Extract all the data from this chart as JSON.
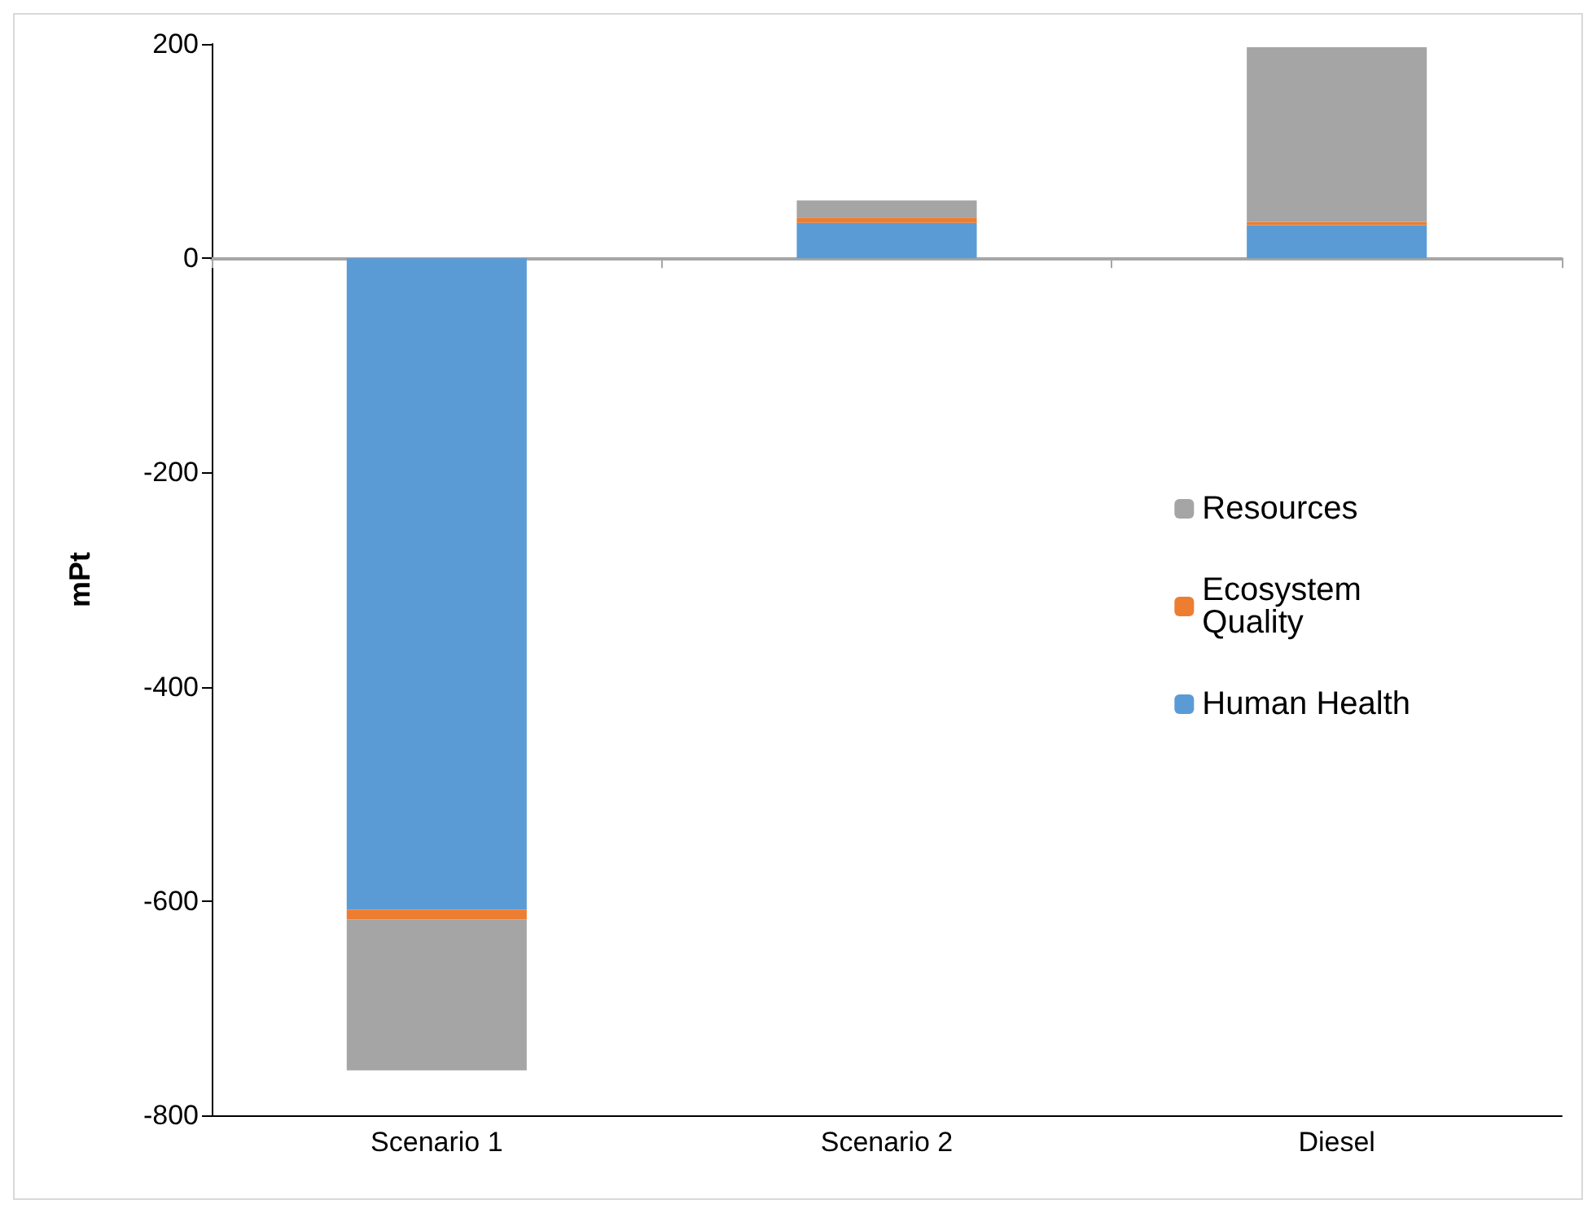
{
  "chart_data": {
    "type": "bar",
    "stacked": true,
    "ylabel": "mPt",
    "categories": [
      "Scenario 1",
      "Scenario 2",
      "Diesel"
    ],
    "series": [
      {
        "name": "Human Health",
        "color": "#5b9bd5",
        "values": [
          -608,
          33,
          31
        ]
      },
      {
        "name": "Ecosystem Quality",
        "color": "#ed7d31",
        "values": [
          -9,
          5,
          3
        ]
      },
      {
        "name": "Resources",
        "color": "#a5a5a5",
        "values": [
          -141,
          16,
          163
        ]
      }
    ],
    "ylim": [
      -800,
      200
    ],
    "yticks": [
      -800,
      -600,
      -400,
      -200,
      0,
      200
    ],
    "legend": "right"
  }
}
